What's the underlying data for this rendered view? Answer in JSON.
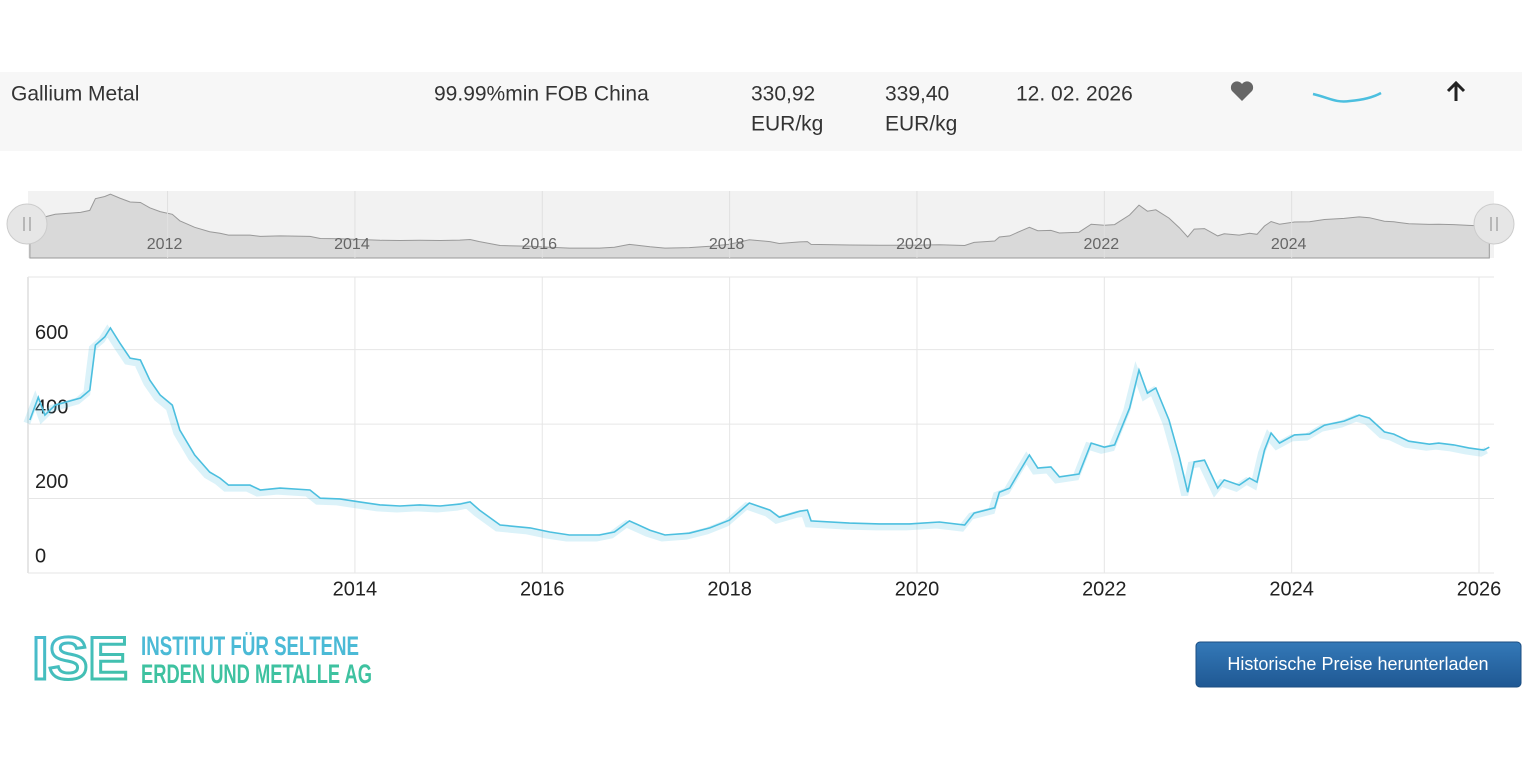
{
  "row": {
    "name": "Gallium Metal",
    "spec": "99.99%min FOB China",
    "price_low": "330,92",
    "price_low_unit": "EUR/kg",
    "price_high": "339,40",
    "price_high_unit": "EUR/kg",
    "date": "12. 02. 2026"
  },
  "chart_data": {
    "type": "line",
    "x": [
      2010.53,
      2010.62,
      2010.69,
      2010.8,
      2011.07,
      2011.17,
      2011.23,
      2011.33,
      2011.39,
      2011.49,
      2011.6,
      2011.71,
      2011.81,
      2011.92,
      2012.05,
      2012.13,
      2012.29,
      2012.45,
      2012.56,
      2012.65,
      2012.88,
      2012.99,
      2013.2,
      2013.52,
      2013.63,
      2013.84,
      2014.05,
      2014.27,
      2014.48,
      2014.69,
      2014.91,
      2015.12,
      2015.23,
      2015.33,
      2015.55,
      2015.87,
      2016.08,
      2016.29,
      2016.61,
      2016.77,
      2016.93,
      2017.15,
      2017.31,
      2017.57,
      2017.79,
      2018.0,
      2018.21,
      2018.43,
      2018.53,
      2018.75,
      2018.83,
      2018.87,
      2019.28,
      2019.6,
      2019.92,
      2020.24,
      2020.51,
      2020.61,
      2020.83,
      2020.88,
      2020.99,
      2021.09,
      2021.2,
      2021.29,
      2021.43,
      2021.52,
      2021.73,
      2021.86,
      2022.0,
      2022.11,
      2022.27,
      2022.37,
      2022.46,
      2022.55,
      2022.69,
      2022.8,
      2022.89,
      2022.96,
      2023.07,
      2023.21,
      2023.28,
      2023.44,
      2023.55,
      2023.63,
      2023.71,
      2023.78,
      2023.87,
      2024.03,
      2024.19,
      2024.35,
      2024.56,
      2024.72,
      2024.83,
      2024.99,
      2025.09,
      2025.25,
      2025.47,
      2025.57,
      2025.73,
      2025.89,
      2026.05,
      2026.11
    ],
    "series": [
      {
        "name": "Gallium Metal",
        "color": "#4cbfdf",
        "values": [
          411,
          472,
          424,
          451,
          470,
          491,
          612,
          634,
          658,
          618,
          577,
          572,
          518,
          478,
          451,
          384,
          317,
          271,
          255,
          236,
          236,
          223,
          228,
          223,
          201,
          199,
          191,
          183,
          180,
          183,
          180,
          185,
          191,
          169,
          129,
          121,
          110,
          102,
          102,
          110,
          140,
          115,
          102,
          107,
          121,
          142,
          188,
          169,
          150,
          166,
          169,
          140,
          134,
          132,
          132,
          137,
          129,
          161,
          175,
          217,
          228,
          271,
          317,
          282,
          285,
          258,
          266,
          349,
          338,
          344,
          443,
          545,
          483,
          497,
          411,
          312,
          217,
          298,
          303,
          228,
          250,
          236,
          255,
          244,
          330,
          376,
          349,
          371,
          373,
          397,
          408,
          424,
          416,
          379,
          373,
          354,
          346,
          349,
          344,
          336,
          330,
          338
        ]
      }
    ],
    "xlim": [
      2010.51,
      2026.16
    ],
    "xticks": [
      2014,
      2016,
      2018,
      2020,
      2022,
      2024,
      2026
    ],
    "ylim": [
      0,
      795
    ],
    "yticks": [
      0,
      200,
      400,
      600
    ],
    "grid": true,
    "navigator_xticks": [
      2012,
      2014,
      2016,
      2018,
      2020,
      2022,
      2024
    ]
  },
  "logo": {
    "mark": "ISE",
    "line1": "INSTITUT FÜR SELTENE",
    "line2": "ERDEN UND METALLE AG"
  },
  "button": {
    "label": "Historische Preise herunterladen"
  }
}
